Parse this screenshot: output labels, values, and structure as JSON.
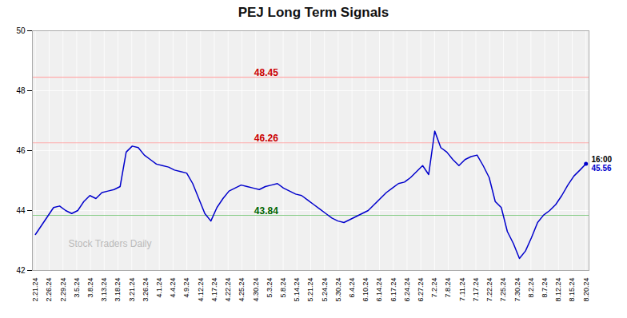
{
  "chart_data": {
    "type": "line",
    "title": "PEJ Long Term Signals",
    "color": "#0000cc",
    "grid": true,
    "marker": "none",
    "values": [
      43.2,
      43.5,
      43.8,
      44.1,
      44.15,
      44.0,
      43.9,
      44.0,
      44.3,
      44.5,
      44.4,
      44.6,
      44.65,
      44.7,
      44.8,
      45.95,
      46.15,
      46.1,
      45.85,
      45.7,
      45.55,
      45.5,
      45.45,
      45.35,
      45.3,
      45.25,
      44.9,
      44.4,
      43.9,
      43.65,
      44.1,
      44.4,
      44.65,
      44.75,
      44.85,
      44.8,
      44.75,
      44.7,
      44.8,
      44.85,
      44.9,
      44.75,
      44.65,
      44.55,
      44.5,
      44.35,
      44.2,
      44.05,
      43.9,
      43.75,
      43.65,
      43.6,
      43.7,
      43.8,
      43.9,
      44.0,
      44.2,
      44.4,
      44.6,
      44.75,
      44.9,
      44.95,
      45.1,
      45.3,
      45.5,
      45.2,
      46.65,
      46.1,
      45.95,
      45.7,
      45.5,
      45.7,
      45.8,
      45.85,
      45.5,
      45.1,
      44.3,
      44.1,
      43.3,
      42.9,
      42.4,
      42.65,
      43.1,
      43.6,
      43.85,
      44.0,
      44.2,
      44.5,
      44.85,
      45.15,
      45.35,
      45.56
    ],
    "xlim": [
      -0.5,
      91.5
    ],
    "xticks": [
      {
        "value": 0,
        "label": "2.21.24"
      },
      {
        "value": 2.275,
        "label": "2.26.24"
      },
      {
        "value": 4.55,
        "label": "2.29.24"
      },
      {
        "value": 6.825,
        "label": "3.5.24"
      },
      {
        "value": 9.1,
        "label": "3.8.24"
      },
      {
        "value": 11.375,
        "label": "3.13.24"
      },
      {
        "value": 13.65,
        "label": "3.18.24"
      },
      {
        "value": 15.925,
        "label": "3.21.24"
      },
      {
        "value": 18.2,
        "label": "3.26.24"
      },
      {
        "value": 20.475,
        "label": "4.1.24"
      },
      {
        "value": 22.75,
        "label": "4.4.24"
      },
      {
        "value": 25.025,
        "label": "4.9.24"
      },
      {
        "value": 27.3,
        "label": "4.12.24"
      },
      {
        "value": 29.575,
        "label": "4.17.24"
      },
      {
        "value": 31.85,
        "label": "4.22.24"
      },
      {
        "value": 34.125,
        "label": "4.25.24"
      },
      {
        "value": 36.4,
        "label": "4.30.24"
      },
      {
        "value": 38.675,
        "label": "5.3.24"
      },
      {
        "value": 40.95,
        "label": "5.8.24"
      },
      {
        "value": 43.225,
        "label": "5.14.24"
      },
      {
        "value": 45.5,
        "label": "5.21.24"
      },
      {
        "value": 47.775,
        "label": "5.24.24"
      },
      {
        "value": 50.05,
        "label": "5.30.24"
      },
      {
        "value": 52.325,
        "label": "6.4.24"
      },
      {
        "value": 54.6,
        "label": "6.10.24"
      },
      {
        "value": 56.875,
        "label": "6.14.24"
      },
      {
        "value": 59.15,
        "label": "6.17.24"
      },
      {
        "value": 61.425,
        "label": "6.24.24"
      },
      {
        "value": 63.7,
        "label": "6.27.24"
      },
      {
        "value": 65.975,
        "label": "7.2.24"
      },
      {
        "value": 68.25,
        "label": "7.8.24"
      },
      {
        "value": 70.525,
        "label": "7.11.24"
      },
      {
        "value": 72.8,
        "label": "7.17.24"
      },
      {
        "value": 75.075,
        "label": "7.22.24"
      },
      {
        "value": 77.35,
        "label": "7.25.24"
      },
      {
        "value": 79.625,
        "label": "7.30.24"
      },
      {
        "value": 81.9,
        "label": "8.2.24"
      },
      {
        "value": 84.175,
        "label": "8.7.24"
      },
      {
        "value": 86.45,
        "label": "8.12.24"
      },
      {
        "value": 88.725,
        "label": "8.15.24"
      },
      {
        "value": 91,
        "label": "8.20.24"
      }
    ],
    "ylim": [
      42,
      50
    ],
    "yticks": [
      42,
      44,
      46,
      48,
      50
    ],
    "reference_lines": [
      {
        "y": 48.45,
        "color": "#ffaaaa"
      },
      {
        "y": 46.26,
        "color": "#ffaaaa"
      },
      {
        "y": 43.84,
        "color": "#88cc88"
      }
    ],
    "annotations": [
      {
        "text": "48.45",
        "y": 48.45,
        "color": "#cc0000"
      },
      {
        "text": "46.26",
        "y": 46.26,
        "color": "#cc0000"
      },
      {
        "text": "43.84",
        "y": 43.84,
        "color": "#006600"
      }
    ],
    "last_point": {
      "label": "16:00",
      "value_label": "45.56",
      "y": 45.56,
      "color": "#0000cc"
    },
    "watermark": "Stock Traders Daily"
  }
}
